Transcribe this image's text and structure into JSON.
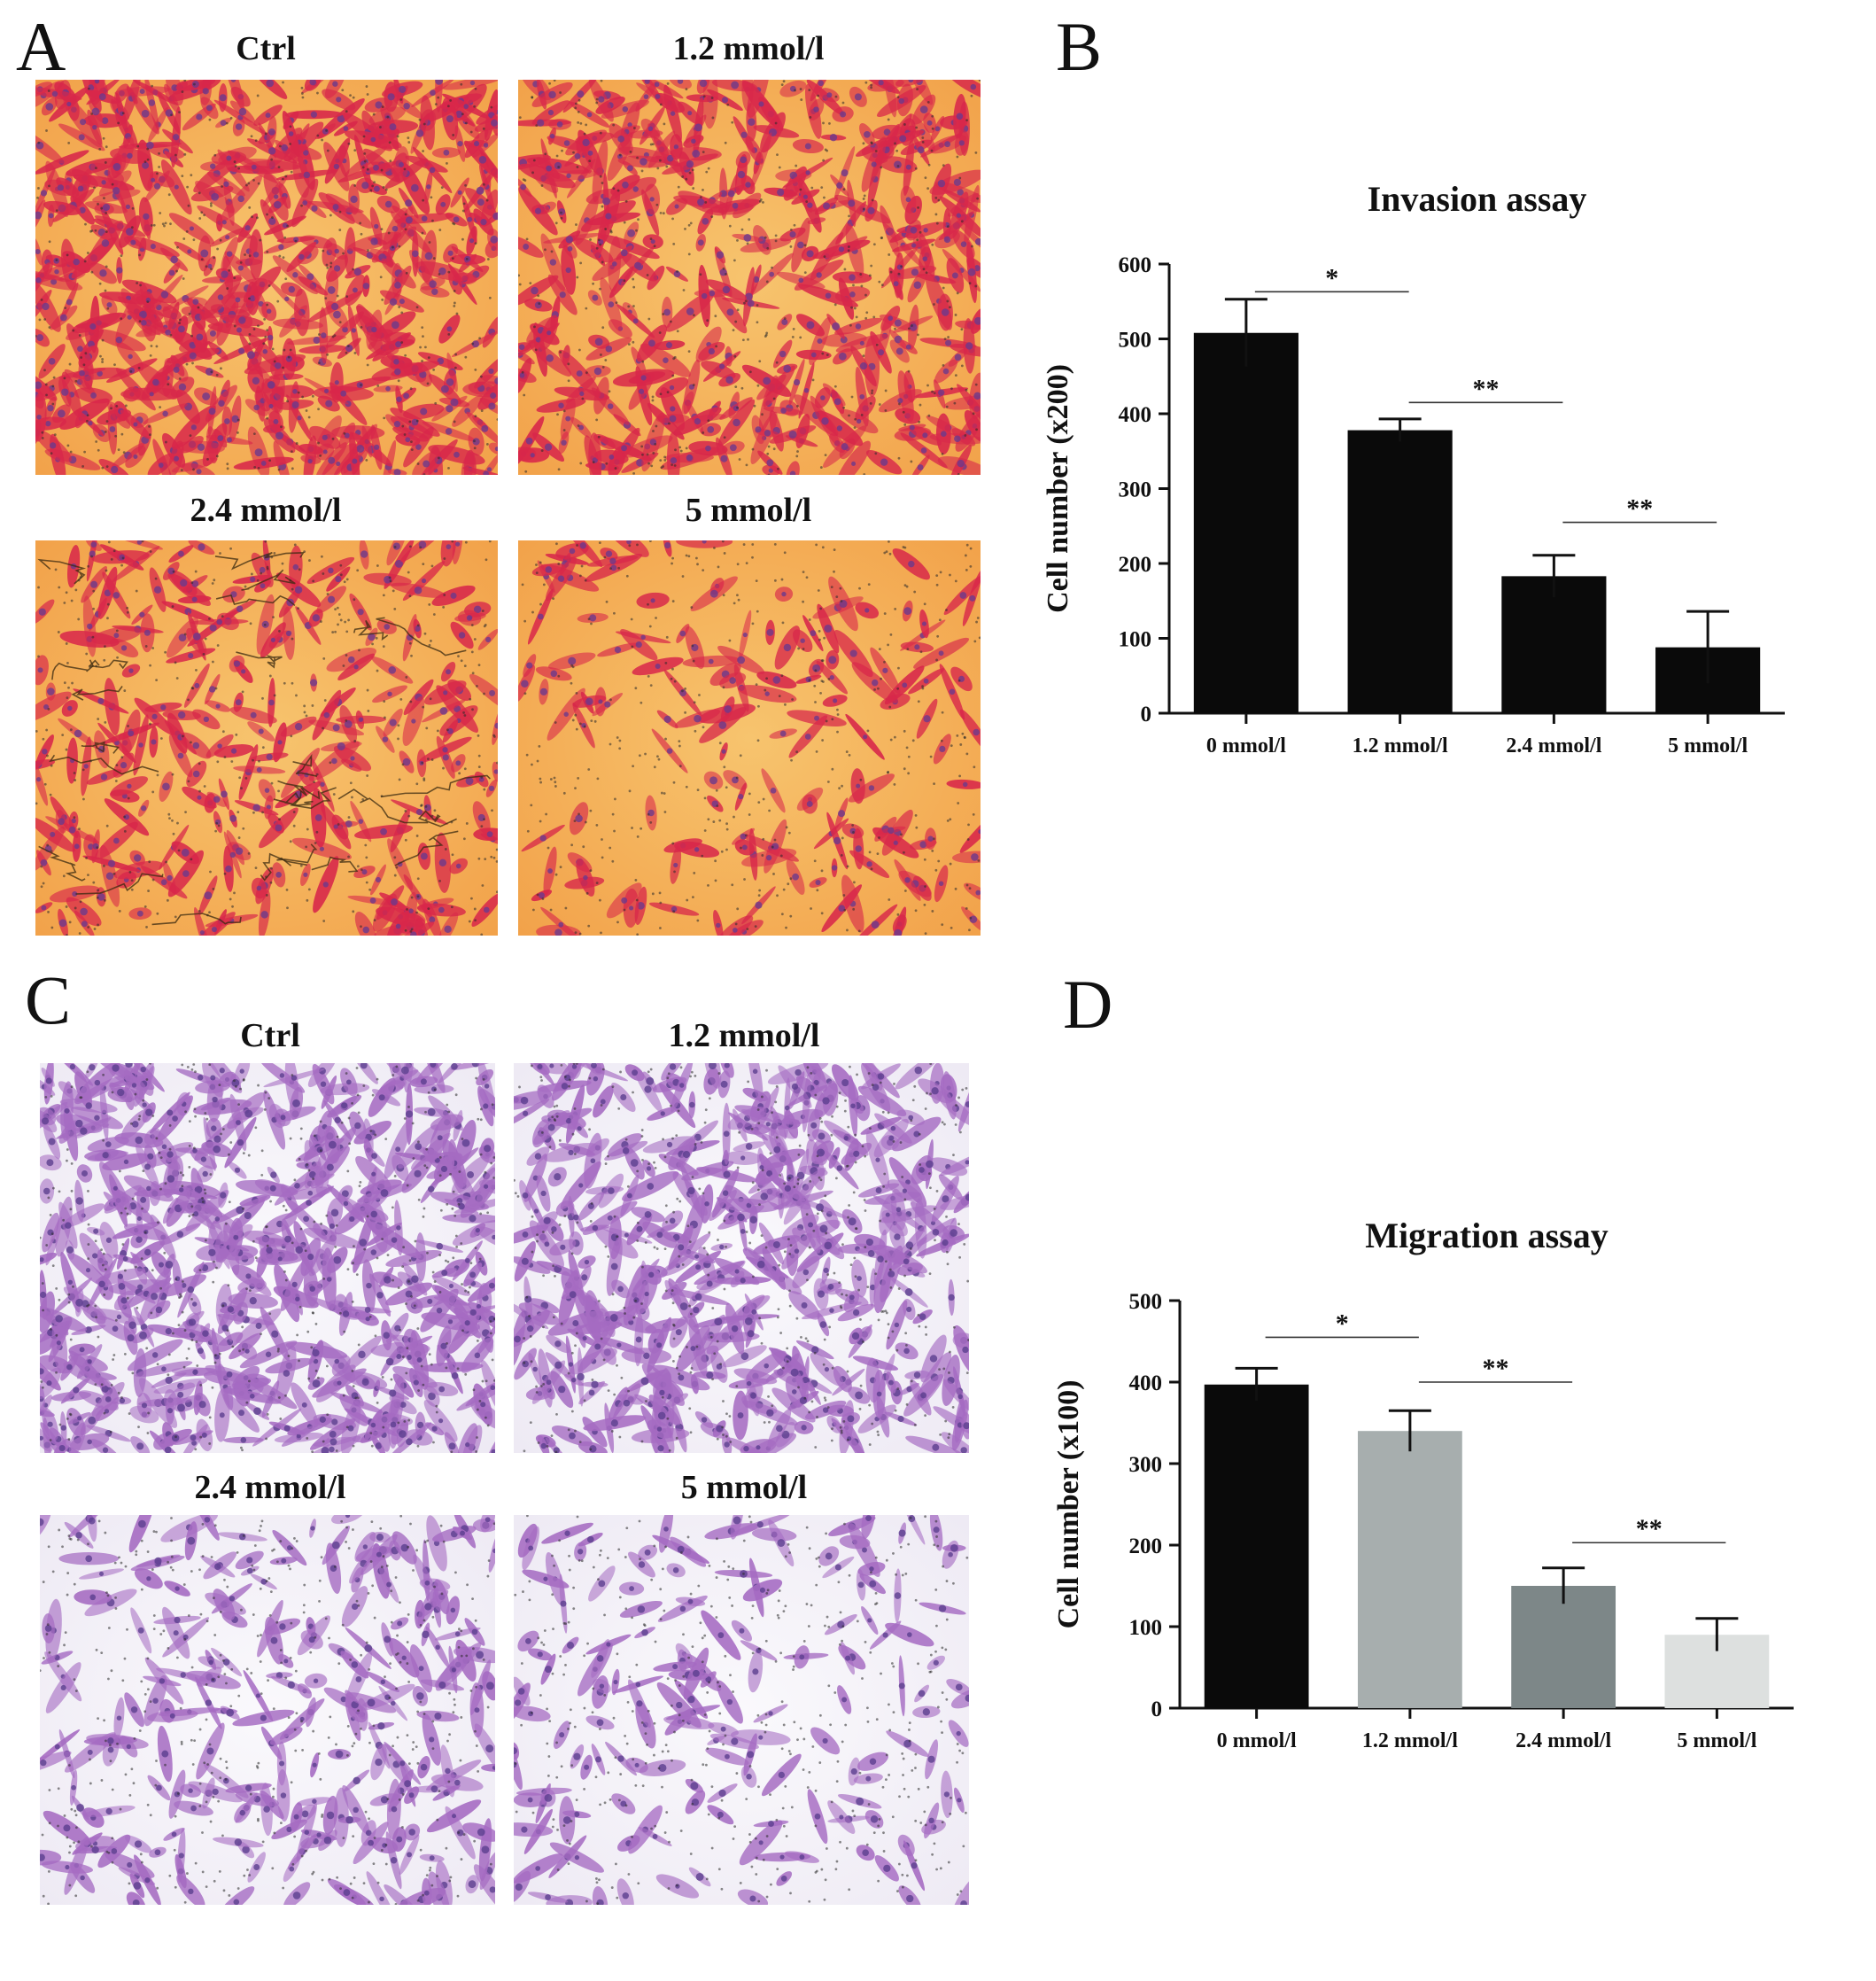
{
  "panels": {
    "a": {
      "letter": "A",
      "micrographs": [
        {
          "title": "Ctrl",
          "stain": "invasion",
          "density": 1.0
        },
        {
          "title": "1.2 mmol/l",
          "stain": "invasion",
          "density": 0.72
        },
        {
          "title": "2.4 mmol/l",
          "stain": "invasion",
          "density": 0.42
        },
        {
          "title": "5 mmol/l",
          "stain": "invasion",
          "density": 0.22
        }
      ]
    },
    "b": {
      "letter": "B"
    },
    "c": {
      "letter": "C",
      "micrographs": [
        {
          "title": "Ctrl",
          "stain": "migration",
          "density": 1.0
        },
        {
          "title": "1.2 mmol/l",
          "stain": "migration",
          "density": 0.82
        },
        {
          "title": "2.4 mmol/l",
          "stain": "migration",
          "density": 0.4
        },
        {
          "title": "5 mmol/l",
          "stain": "migration",
          "density": 0.24
        }
      ]
    },
    "d": {
      "letter": "D"
    }
  },
  "colors": {
    "invasion_bg": "#f2a24a",
    "invasion_bg_light": "#f7c46e",
    "invasion_cell": "#d8274a",
    "invasion_nucleus": "#6b3a8c",
    "migration_bg": "#eeeaf4",
    "migration_cell": "#a56bc2",
    "migration_nucleus": "#5b3f8e",
    "pore": "#2a2a2a"
  },
  "chart_data": [
    {
      "type": "bar",
      "title": "Invasion assay",
      "xlabel": "",
      "ylabel": "Cell number (x200)",
      "categories": [
        "0 mmol/l",
        "1.2 mmol/l",
        "2.4 mmol/l",
        "5 mmol/l"
      ],
      "values": [
        508,
        378,
        183,
        88
      ],
      "errors": [
        45,
        15,
        28,
        48
      ],
      "bar_colors": [
        "#0a0a0a",
        "#0a0a0a",
        "#0a0a0a",
        "#0a0a0a"
      ],
      "ylim": [
        0,
        600
      ],
      "yticks": [
        "0",
        "100",
        "200",
        "300",
        "400",
        "500",
        "600"
      ],
      "grid": false,
      "significance": [
        {
          "from": 0,
          "to": 1,
          "label": "*",
          "y": 563
        },
        {
          "from": 1,
          "to": 2,
          "label": "**",
          "y": 415
        },
        {
          "from": 2,
          "to": 3,
          "label": "**",
          "y": 255
        }
      ]
    },
    {
      "type": "bar",
      "title": "Migration assay",
      "xlabel": "",
      "ylabel": "Cell number (x100)",
      "categories": [
        "0 mmol/l",
        "1.2 mmol/l",
        "2.4 mmol/l",
        "5 mmol/l"
      ],
      "values": [
        397,
        340,
        150,
        90
      ],
      "errors": [
        20,
        25,
        22,
        20
      ],
      "bar_colors": [
        "#0a0a0a",
        "#a7aeae",
        "#7d8788",
        "#dde0df"
      ],
      "ylim": [
        0,
        500
      ],
      "yticks": [
        "0",
        "100",
        "200",
        "300",
        "400",
        "500"
      ],
      "grid": false,
      "significance": [
        {
          "from": 0,
          "to": 1,
          "label": "*",
          "y": 455
        },
        {
          "from": 1,
          "to": 2,
          "label": "**",
          "y": 400
        },
        {
          "from": 2,
          "to": 3,
          "label": "**",
          "y": 203
        }
      ]
    }
  ]
}
